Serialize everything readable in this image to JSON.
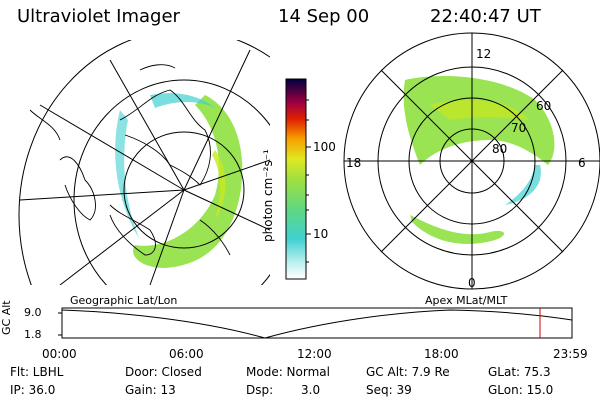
{
  "header": {
    "instrument": "Ultraviolet Imager",
    "date": "14 Sep 00",
    "time": "22:40:47 UT"
  },
  "colorbar": {
    "unit_label": "photon cm⁻²s⁻¹",
    "ticks": [
      "100",
      "10"
    ]
  },
  "left_panel": {
    "label": "Geographic Lat/Lon"
  },
  "right_panel": {
    "label": "Apex  MLat/MLT",
    "mlt_labels": [
      "12",
      "18",
      "6",
      "0"
    ],
    "mlat_labels": [
      "60",
      "70",
      "80"
    ]
  },
  "timeline": {
    "ylabel": "GC Alt",
    "y_ticks": [
      "9.0",
      "1.8"
    ],
    "x_ticks": [
      "00:00",
      "06:00",
      "12:00",
      "18:00",
      "23:59"
    ]
  },
  "info": {
    "flt": "Flt: LBHL",
    "ip": "IP: 36.0",
    "door": "Door: Closed",
    "gain": "Gain: 13",
    "mode": "Mode: Normal",
    "dsp_label": "Dsp:",
    "dsp_value": "3.0",
    "gc_alt": "GC Alt: 7.9 Re",
    "seq": "Seq: 39",
    "glat": "GLat:  75.3",
    "glon": "GLon:  15.0"
  },
  "colors": {
    "aurora_green": "#8fe040",
    "aurora_yellow": "#c8e820",
    "aurora_cyan": "#40d0d0",
    "marker_red": "#d00000"
  }
}
